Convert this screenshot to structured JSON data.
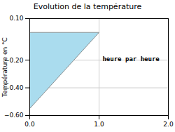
{
  "chart_data": {
    "type": "area",
    "title": "Evolution de la température",
    "ylabel": "Température en °C",
    "x": [
      0,
      1,
      0
    ],
    "values": [
      0.0,
      0.0,
      -0.55
    ],
    "color": "#aadcee",
    "xlim": [
      0,
      2
    ],
    "ylim": [
      -0.6,
      0.1
    ],
    "xticks": [
      0,
      1,
      2
    ],
    "yticks": [
      0.1,
      -0.2,
      -0.4,
      -0.6
    ],
    "grid": true,
    "annotations": [
      {
        "text": "heure par heure",
        "x": 1.05,
        "y": -0.19
      }
    ]
  }
}
